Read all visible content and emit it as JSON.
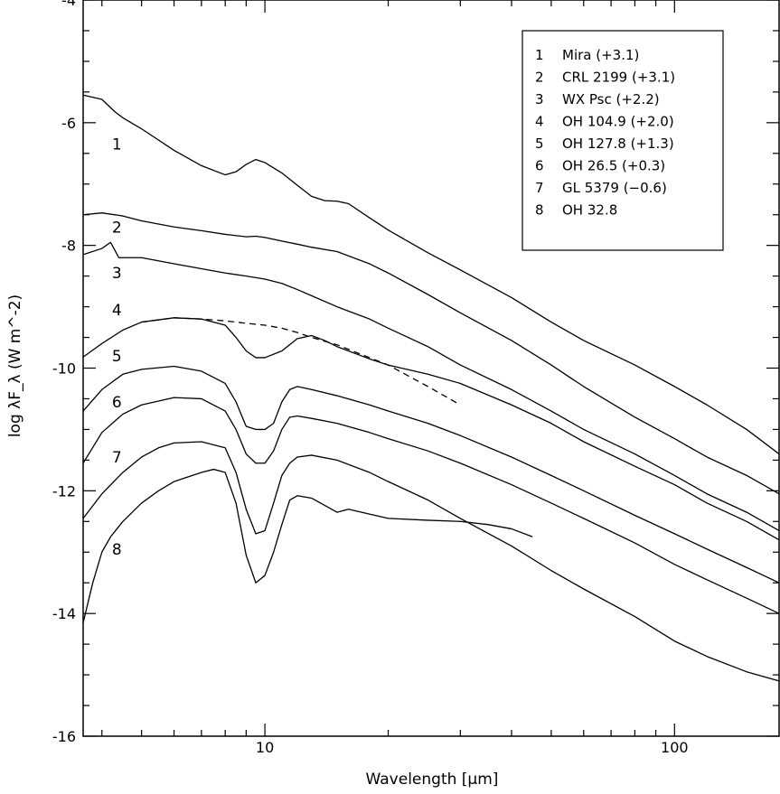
{
  "chart_data": {
    "type": "line",
    "title": "",
    "xlabel": "Wavelength [µm]",
    "ylabel": "log λF_λ (W m^-2)",
    "xscale": "log",
    "xlim": [
      3.6,
      180
    ],
    "ylim": [
      -16,
      -4
    ],
    "x_ticks": [
      10,
      100
    ],
    "x_tick_labels": [
      "10",
      "100"
    ],
    "y_ticks": [
      -16,
      -14,
      -12,
      -10,
      -8,
      -6,
      -4
    ],
    "y_tick_labels": [
      "-16",
      "-14",
      "-12",
      "-10",
      "-8",
      "-6",
      "-4"
    ],
    "legend_position": "top-right",
    "legend": [
      {
        "num": "1",
        "label": "Mira (+3.1)"
      },
      {
        "num": "2",
        "label": "CRL 2199 (+3.1)"
      },
      {
        "num": "3",
        "label": "WX Psc (+2.2)"
      },
      {
        "num": "4",
        "label": "OH 104.9 (+2.0)"
      },
      {
        "num": "5",
        "label": "OH 127.8 (+1.3)"
      },
      {
        "num": "6",
        "label": "OH 26.5 (+0.3)"
      },
      {
        "num": "7",
        "label": "GL 5379 (−0.6)"
      },
      {
        "num": "8",
        "label": "OH 32.8"
      }
    ],
    "series": [
      {
        "name": "1",
        "label_pos": [
          4.35,
          -6.35
        ],
        "x": [
          3.6,
          4.0,
          4.3,
          4.5,
          5.0,
          6.0,
          7.0,
          8.0,
          8.5,
          9.0,
          9.5,
          10.0,
          11.0,
          12.0,
          13.0,
          14.0,
          15.0,
          16.0,
          18.0,
          20.0,
          25.0,
          30.0,
          40.0,
          50.0,
          60.0,
          80.0,
          100.0,
          120.0,
          150.0,
          180.0
        ],
        "y": [
          -5.55,
          -5.62,
          -5.82,
          -5.92,
          -6.1,
          -6.45,
          -6.7,
          -6.85,
          -6.8,
          -6.68,
          -6.6,
          -6.65,
          -6.82,
          -7.02,
          -7.2,
          -7.27,
          -7.28,
          -7.32,
          -7.55,
          -7.75,
          -8.12,
          -8.4,
          -8.85,
          -9.25,
          -9.55,
          -9.95,
          -10.3,
          -10.6,
          -11.0,
          -11.4
        ]
      },
      {
        "name": "2",
        "label_pos": [
          4.35,
          -7.7
        ],
        "x": [
          3.6,
          4.0,
          4.5,
          5.0,
          6.0,
          7.0,
          8.0,
          9.0,
          9.5,
          10.0,
          11.0,
          12.0,
          13.0,
          15.0,
          18.0,
          20.0,
          25.0,
          30.0,
          40.0,
          50.0,
          60.0,
          80.0,
          100.0,
          120.0,
          150.0,
          180.0
        ],
        "y": [
          -7.5,
          -7.47,
          -7.52,
          -7.6,
          -7.7,
          -7.76,
          -7.82,
          -7.86,
          -7.85,
          -7.87,
          -7.93,
          -7.98,
          -8.03,
          -8.1,
          -8.3,
          -8.45,
          -8.8,
          -9.1,
          -9.55,
          -9.95,
          -10.3,
          -10.8,
          -11.15,
          -11.45,
          -11.75,
          -12.05
        ]
      },
      {
        "name": "3",
        "label_pos": [
          4.35,
          -8.45
        ],
        "x": [
          3.6,
          4.0,
          4.2,
          4.4,
          5.0,
          6.0,
          7.0,
          8.0,
          9.0,
          10.0,
          11.0,
          12.0,
          13.0,
          15.0,
          18.0,
          20.0,
          25.0,
          30.0,
          40.0,
          50.0,
          60.0,
          80.0,
          100.0,
          120.0,
          150.0,
          180.0
        ],
        "y": [
          -8.15,
          -8.05,
          -7.95,
          -8.2,
          -8.2,
          -8.3,
          -8.38,
          -8.45,
          -8.5,
          -8.55,
          -8.62,
          -8.72,
          -8.82,
          -9.0,
          -9.2,
          -9.35,
          -9.65,
          -9.95,
          -10.35,
          -10.7,
          -11.0,
          -11.4,
          -11.75,
          -12.05,
          -12.35,
          -12.65
        ]
      },
      {
        "name": "4",
        "label_pos": [
          4.35,
          -9.05
        ],
        "x": [
          3.6,
          4.0,
          4.5,
          5.0,
          6.0,
          7.0,
          8.0,
          8.5,
          9.0,
          9.5,
          10.0,
          11.0,
          12.0,
          13.0,
          14.0,
          15.0,
          18.0,
          20.0,
          25.0,
          30.0,
          40.0,
          50.0,
          60.0,
          80.0,
          100.0,
          120.0,
          150.0,
          180.0
        ],
        "y": [
          -9.82,
          -9.6,
          -9.38,
          -9.25,
          -9.18,
          -9.2,
          -9.3,
          -9.5,
          -9.72,
          -9.83,
          -9.83,
          -9.72,
          -9.52,
          -9.47,
          -9.55,
          -9.65,
          -9.85,
          -9.95,
          -10.1,
          -10.25,
          -10.6,
          -10.9,
          -11.2,
          -11.6,
          -11.9,
          -12.2,
          -12.5,
          -12.8
        ]
      },
      {
        "name": "4 (dashed continuum)",
        "dashed": true,
        "x": [
          5.0,
          6.0,
          7.0,
          8.0,
          9.0,
          10.0,
          11.0,
          12.0,
          13.0,
          15.0,
          18.0,
          20.0,
          25.0,
          30.0
        ],
        "y": [
          -9.25,
          -9.18,
          -9.2,
          -9.23,
          -9.27,
          -9.3,
          -9.35,
          -9.42,
          -9.5,
          -9.62,
          -9.83,
          -9.95,
          -10.3,
          -10.6
        ]
      },
      {
        "name": "5",
        "label_pos": [
          4.35,
          -9.8
        ],
        "x": [
          3.6,
          4.0,
          4.5,
          5.0,
          6.0,
          7.0,
          8.0,
          8.5,
          9.0,
          9.5,
          10.0,
          10.5,
          11.0,
          11.5,
          12.0,
          13.0,
          15.0,
          18.0,
          20.0,
          25.0,
          30.0,
          40.0,
          50.0,
          60.0,
          80.0,
          100.0,
          120.0,
          150.0,
          180.0
        ],
        "y": [
          -10.7,
          -10.35,
          -10.1,
          -10.02,
          -9.97,
          -10.05,
          -10.25,
          -10.55,
          -10.95,
          -11.0,
          -11.0,
          -10.9,
          -10.55,
          -10.35,
          -10.3,
          -10.35,
          -10.45,
          -10.6,
          -10.7,
          -10.9,
          -11.1,
          -11.45,
          -11.75,
          -12.0,
          -12.4,
          -12.7,
          -12.95,
          -13.25,
          -13.5
        ]
      },
      {
        "name": "6",
        "label_pos": [
          4.35,
          -10.55
        ],
        "x": [
          3.6,
          4.0,
          4.5,
          5.0,
          6.0,
          7.0,
          8.0,
          8.5,
          9.0,
          9.5,
          10.0,
          10.5,
          11.0,
          11.5,
          12.0,
          13.0,
          15.0,
          18.0,
          20.0,
          25.0,
          30.0,
          40.0,
          50.0,
          60.0,
          80.0,
          100.0,
          120.0,
          150.0,
          180.0
        ],
        "y": [
          -11.55,
          -11.05,
          -10.75,
          -10.6,
          -10.48,
          -10.5,
          -10.7,
          -11.0,
          -11.4,
          -11.55,
          -11.55,
          -11.35,
          -11.0,
          -10.8,
          -10.78,
          -10.82,
          -10.9,
          -11.05,
          -11.15,
          -11.35,
          -11.55,
          -11.9,
          -12.2,
          -12.45,
          -12.85,
          -13.2,
          -13.45,
          -13.75,
          -14.0
        ]
      },
      {
        "name": "7",
        "label_pos": [
          4.35,
          -11.45
        ],
        "x": [
          3.6,
          4.0,
          4.5,
          5.0,
          5.5,
          6.0,
          7.0,
          8.0,
          8.5,
          9.0,
          9.5,
          10.0,
          10.5,
          11.0,
          11.5,
          12.0,
          13.0,
          15.0,
          18.0,
          20.0,
          25.0,
          30.0,
          40.0,
          50.0,
          60.0,
          80.0,
          100.0,
          120.0,
          150.0,
          180.0
        ],
        "y": [
          -12.45,
          -12.05,
          -11.7,
          -11.45,
          -11.3,
          -11.22,
          -11.2,
          -11.3,
          -11.7,
          -12.3,
          -12.7,
          -12.65,
          -12.2,
          -11.75,
          -11.55,
          -11.45,
          -11.42,
          -11.5,
          -11.7,
          -11.85,
          -12.15,
          -12.45,
          -12.9,
          -13.3,
          -13.6,
          -14.05,
          -14.45,
          -14.7,
          -14.95,
          -15.1
        ]
      },
      {
        "name": "8",
        "label_pos": [
          4.35,
          -12.95
        ],
        "x": [
          3.6,
          3.8,
          4.0,
          4.2,
          4.5,
          5.0,
          5.5,
          6.0,
          7.0,
          7.5,
          8.0,
          8.5,
          9.0,
          9.5,
          10.0,
          10.5,
          11.0,
          11.5,
          12.0,
          13.0,
          15.0,
          16.0,
          18.0,
          20.0,
          25.0,
          30.0,
          35.0,
          40.0,
          45.0
        ],
        "y": [
          -14.15,
          -13.5,
          -13.0,
          -12.75,
          -12.5,
          -12.2,
          -12.0,
          -11.85,
          -11.7,
          -11.65,
          -11.7,
          -12.2,
          -13.05,
          -13.5,
          -13.38,
          -13.0,
          -12.55,
          -12.15,
          -12.08,
          -12.12,
          -12.35,
          -12.3,
          -12.38,
          -12.45,
          -12.48,
          -12.5,
          -12.55,
          -12.62,
          -12.75
        ]
      }
    ]
  }
}
